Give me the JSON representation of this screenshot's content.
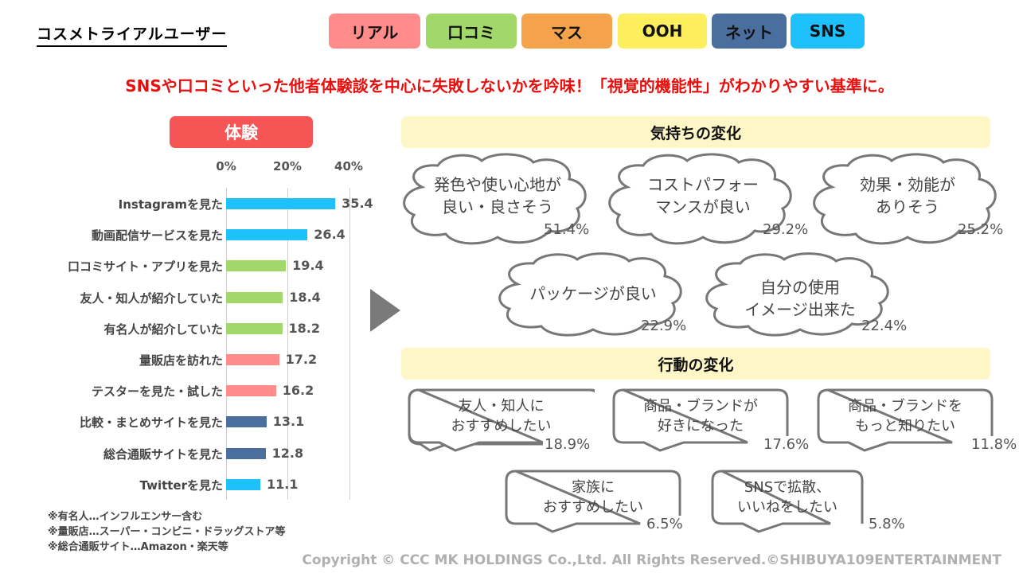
{
  "header": {
    "title": "コスメトライアルユーザー",
    "legend": [
      {
        "label": "リアル",
        "color": "#ff8b8b"
      },
      {
        "label": "口コミ",
        "color": "#a2d76a"
      },
      {
        "label": "マス",
        "color": "#f4a24b"
      },
      {
        "label": "OOH",
        "color": "#fcee5d"
      },
      {
        "label": "ネット",
        "color": "#4a6e9e"
      },
      {
        "label": "SNS",
        "color": "#1ec1fb"
      }
    ],
    "headline": "SNSや口コミといった他者体験談を中心に失敗しないかを吟味！「視覚的機能性」がわかりやすい基準に。"
  },
  "experience": {
    "title": "体験",
    "notes": [
      "※有名人…インフルエンサー含む",
      "※量販店…スーパー・コンビニ・ドラッグストア等",
      "※総合通販サイト…Amazon・楽天等"
    ]
  },
  "chart_data": {
    "type": "bar",
    "orientation": "horizontal",
    "title": "体験",
    "xlabel": "",
    "ylabel": "",
    "xlim": [
      0,
      40
    ],
    "x_ticks": [
      "0%",
      "20%",
      "40%"
    ],
    "grid": true,
    "categories": [
      "Instagramを見た",
      "動画配信サービスを見た",
      "口コミサイト・アプリを見た",
      "友人・知人が紹介していた",
      "有名人が紹介していた",
      "量販店を訪れた",
      "テスターを見た・試した",
      "比較・まとめサイトを見た",
      "総合通販サイトを見た",
      "Twitterを見た"
    ],
    "values": [
      35.4,
      26.4,
      19.4,
      18.4,
      18.2,
      17.2,
      16.2,
      13.1,
      12.8,
      11.1
    ],
    "value_labels": [
      "35.4",
      "26.4",
      "19.4",
      "18.4",
      "18.2",
      "17.2",
      "16.2",
      "13.1",
      "12.8",
      "11.1"
    ],
    "bar_colors": [
      "#1ec1fb",
      "#1ec1fb",
      "#a2d76a",
      "#a2d76a",
      "#a2d76a",
      "#ff8b8b",
      "#ff8b8b",
      "#4a6e9e",
      "#4a6e9e",
      "#1ec1fb"
    ],
    "bar_category": [
      "SNS",
      "SNS",
      "口コミ",
      "口コミ",
      "口コミ",
      "リアル",
      "リアル",
      "ネット",
      "ネット",
      "SNS"
    ]
  },
  "feelings": {
    "title": "気持ちの変化",
    "items": [
      {
        "line1": "発色や使い心地が",
        "line2": "良い・良さそう",
        "pct": "51.4%"
      },
      {
        "line1": "コストパフォー",
        "line2": "マンスが良い",
        "pct": "29.2%"
      },
      {
        "line1": "効果・効能が",
        "line2": "ありそう",
        "pct": "25.2%"
      },
      {
        "line1": "パッケージが良い",
        "line2": "",
        "pct": "22.9%"
      },
      {
        "line1": "自分の使用",
        "line2": "イメージ出来た",
        "pct": "22.4%"
      }
    ]
  },
  "actions": {
    "title": "行動の変化",
    "items": [
      {
        "line1": "友人・知人に",
        "line2": "おすすめしたい",
        "pct": "18.9%"
      },
      {
        "line1": "商品・ブランドが",
        "line2": "好きになった",
        "pct": "17.6%"
      },
      {
        "line1": "商品・ブランドを",
        "line2": "もっと知りたい",
        "pct": "11.8%"
      },
      {
        "line1": "家族に",
        "line2": "おすすめしたい",
        "pct": "6.5%"
      },
      {
        "line1": "SNSで拡散、",
        "line2": "いいねをしたい",
        "pct": "5.8%"
      }
    ]
  },
  "footer": {
    "copyright": "Copyright © CCC MK HOLDINGS Co.,Ltd. All Rights Reserved.©SHIBUYA109ENTERTAINMENT"
  }
}
